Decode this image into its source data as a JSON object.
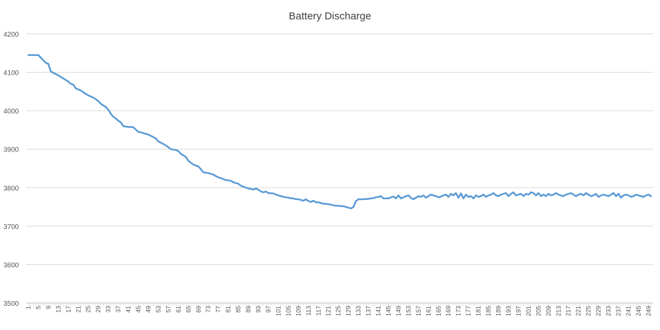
{
  "chart_data": {
    "type": "line",
    "title": "Battery Discharge",
    "xlabel": "",
    "ylabel": "",
    "ylim": [
      3500,
      4200
    ],
    "yticks": [
      3500,
      3600,
      3700,
      3800,
      3900,
      4000,
      4100,
      4200
    ],
    "x_range": [
      1,
      250
    ],
    "x_tick_labels": [
      1,
      5,
      9,
      13,
      17,
      21,
      25,
      29,
      33,
      37,
      41,
      45,
      49,
      53,
      57,
      61,
      65,
      69,
      73,
      77,
      81,
      85,
      89,
      93,
      97,
      101,
      105,
      109,
      113,
      117,
      121,
      125,
      129,
      133,
      137,
      141,
      145,
      149,
      153,
      157,
      161,
      165,
      169,
      173,
      177,
      181,
      185,
      189,
      193,
      197,
      201,
      205,
      209,
      213,
      217,
      221,
      225,
      229,
      233,
      237,
      241,
      245,
      249
    ],
    "grid": true,
    "legend": "none",
    "line_color": "#5b9bd5",
    "series": [
      {
        "name": "",
        "x": [
          1,
          5,
          6,
          8,
          9,
          10,
          13,
          14,
          16,
          17,
          18,
          19,
          20,
          22,
          23,
          25,
          26,
          27,
          28,
          29,
          30,
          31,
          32,
          33,
          34,
          35,
          36,
          37,
          38,
          39,
          41,
          42,
          43,
          45,
          46,
          47,
          48,
          49,
          50,
          52,
          53,
          54,
          56,
          57,
          58,
          60,
          61,
          62,
          64,
          65,
          66,
          67,
          69,
          70,
          71,
          73,
          74,
          75,
          76,
          77,
          78,
          79,
          80,
          82,
          83,
          84,
          85,
          86,
          88,
          89,
          90,
          91,
          92,
          93,
          94,
          95,
          96,
          97,
          99,
          100,
          101,
          102,
          103,
          105,
          106,
          107,
          108,
          109,
          110,
          111,
          112,
          113,
          114,
          115,
          116,
          117,
          118,
          119,
          120,
          121,
          122,
          123,
          124,
          125,
          126,
          127,
          128,
          129,
          130,
          131,
          132,
          133,
          135,
          137,
          139,
          140,
          141,
          142,
          143,
          145,
          146,
          147,
          148,
          149,
          150,
          151,
          152,
          153,
          154,
          155,
          157,
          158,
          159,
          160,
          161,
          162,
          163,
          164,
          165,
          166,
          167,
          168,
          169,
          170,
          171,
          172,
          173,
          174,
          175,
          176,
          177,
          178,
          179,
          180,
          181,
          182,
          183,
          184,
          185,
          186,
          187,
          188,
          189,
          190,
          191,
          192,
          193,
          194,
          195,
          196,
          197,
          198,
          199,
          200,
          201,
          202,
          203,
          204,
          205,
          206,
          207,
          208,
          209,
          210,
          211,
          212,
          213,
          214,
          215,
          216,
          217,
          218,
          219,
          220,
          221,
          222,
          223,
          224,
          225,
          226,
          227,
          228,
          229,
          230,
          231,
          232,
          233,
          234,
          235,
          236,
          237,
          238,
          239,
          240,
          241,
          242,
          243,
          244,
          245,
          246,
          247,
          248,
          249,
          250
        ],
        "values": [
          4145,
          4145,
          4138,
          4125,
          4122,
          4102,
          4092,
          4088,
          4080,
          4076,
          4070,
          4068,
          4058,
          4053,
          4048,
          4040,
          4037,
          4034,
          4030,
          4025,
          4018,
          4014,
          4010,
          4002,
          3992,
          3984,
          3980,
          3974,
          3970,
          3960,
          3958,
          3958,
          3957,
          3945,
          3944,
          3942,
          3940,
          3938,
          3935,
          3928,
          3920,
          3917,
          3910,
          3905,
          3900,
          3898,
          3895,
          3888,
          3880,
          3870,
          3865,
          3860,
          3855,
          3848,
          3840,
          3838,
          3836,
          3834,
          3830,
          3827,
          3825,
          3822,
          3820,
          3818,
          3814,
          3812,
          3810,
          3805,
          3800,
          3798,
          3797,
          3795,
          3798,
          3795,
          3790,
          3788,
          3790,
          3786,
          3785,
          3782,
          3780,
          3778,
          3776,
          3774,
          3772,
          3772,
          3770,
          3770,
          3768,
          3766,
          3770,
          3765,
          3763,
          3766,
          3762,
          3762,
          3760,
          3758,
          3758,
          3757,
          3756,
          3754,
          3753,
          3753,
          3752,
          3752,
          3750,
          3748,
          3746,
          3750,
          3765,
          3770,
          3770,
          3771,
          3773,
          3775,
          3776,
          3778,
          3772,
          3772,
          3775,
          3777,
          3772,
          3780,
          3772,
          3775,
          3778,
          3780,
          3773,
          3770,
          3778,
          3776,
          3780,
          3774,
          3778,
          3782,
          3780,
          3778,
          3775,
          3777,
          3780,
          3782,
          3776,
          3784,
          3780,
          3786,
          3774,
          3785,
          3772,
          3782,
          3776,
          3778,
          3772,
          3780,
          3776,
          3778,
          3782,
          3776,
          3780,
          3782,
          3786,
          3780,
          3778,
          3782,
          3784,
          3786,
          3778,
          3784,
          3788,
          3780,
          3782,
          3784,
          3778,
          3784,
          3782,
          3788,
          3786,
          3780,
          3786,
          3778,
          3782,
          3778,
          3784,
          3780,
          3782,
          3786,
          3782,
          3780,
          3778,
          3782,
          3784,
          3786,
          3782,
          3778,
          3782,
          3784,
          3780,
          3786,
          3782,
          3778,
          3780,
          3784,
          3776,
          3780,
          3782,
          3780,
          3778,
          3782,
          3786,
          3778,
          3784,
          3774,
          3780,
          3782,
          3780,
          3776,
          3778,
          3782,
          3780,
          3778,
          3776,
          3780,
          3782,
          3778
        ]
      }
    ]
  }
}
